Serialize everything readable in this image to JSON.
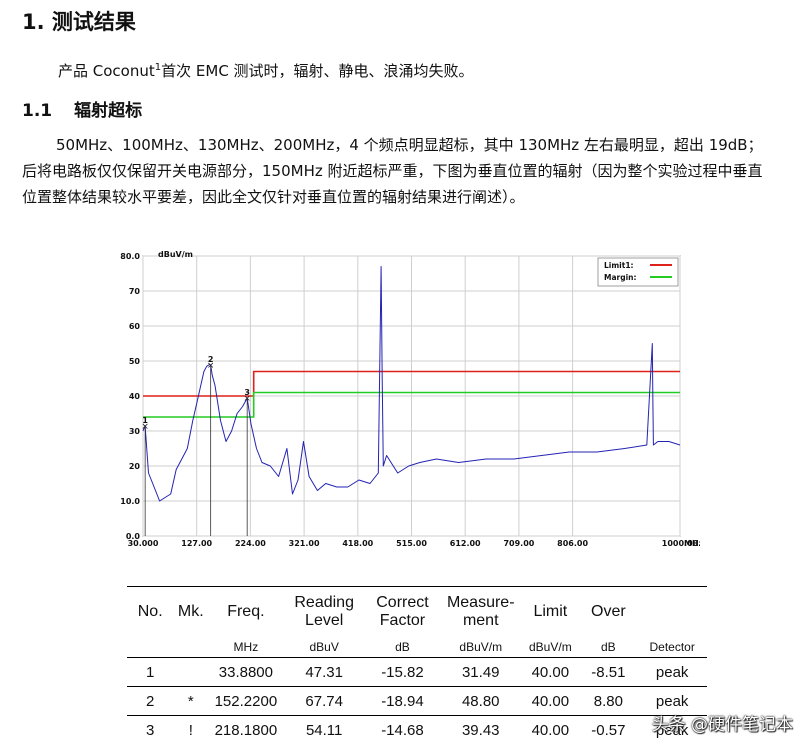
{
  "doc": {
    "h1": "1. 测试结果",
    "intro": {
      "prefix": "产品 Coconut",
      "sup": "1",
      "suffix": "首次 EMC 测试时，辐射、静电、浪涌均失败。"
    },
    "h2_num": "1.1",
    "h2_title": "辐射超标",
    "body": "50MHz、100MHz、130MHz、200MHz，4 个频点明显超标，其中 130MHz 左右最明显，超出 19dB；后将电路板仅仅保留开关电源部分，150MHz 附近超标严重，下图为垂直位置的辐射（因为整个实验过程中垂直位置整体结果较水平要差，因此全文仅针对垂直位置的辐射结果进行阐述）。"
  },
  "chart_data": {
    "type": "line",
    "ylabel": "dBuV/m",
    "xlabel": "MHz",
    "xlim": [
      30,
      1000
    ],
    "ylim": [
      0,
      80
    ],
    "x_ticks": [
      "30.000",
      "127.00",
      "224.00",
      "321.00",
      "418.00",
      "515.00",
      "612.00",
      "709.00",
      "806.00",
      "1000.00"
    ],
    "x_tick_values": [
      30,
      127,
      224,
      321,
      418,
      515,
      612,
      709,
      806,
      1000
    ],
    "y_ticks": [
      "80.0",
      "70",
      "60",
      "50",
      "40",
      "30",
      "20",
      "10.0",
      "0.0"
    ],
    "y_tick_values": [
      80,
      70,
      60,
      50,
      40,
      30,
      20,
      10,
      0
    ],
    "grid": true,
    "legend_position": "top-right",
    "series": [
      {
        "name": "Limit1:",
        "color": "#e0201a",
        "x": [
          30,
          230,
          230,
          1000
        ],
        "y": [
          40,
          40,
          47,
          47
        ]
      },
      {
        "name": "Margin:",
        "color": "#22cc22",
        "x": [
          30,
          230,
          230,
          1000
        ],
        "y": [
          34,
          34,
          41,
          41
        ]
      },
      {
        "name": "",
        "color": "#2323b4",
        "x": [
          30,
          33.88,
          40,
          50,
          60,
          70,
          80,
          90,
          100,
          110,
          120,
          130,
          140,
          145,
          150,
          152.22,
          155,
          160,
          170,
          180,
          190,
          200,
          210,
          218.18,
          225,
          235,
          245,
          260,
          275,
          290,
          300,
          310,
          320,
          330,
          345,
          360,
          380,
          400,
          420,
          440,
          455,
          460,
          462,
          464,
          470,
          490,
          510,
          530,
          560,
          600,
          650,
          700,
          750,
          800,
          850,
          900,
          940,
          950,
          951,
          952,
          960,
          980,
          1000
        ],
        "y": [
          30,
          31.5,
          18,
          14,
          10,
          11,
          12,
          19,
          22,
          25,
          33,
          40,
          47,
          48.5,
          49,
          48.8,
          46,
          43,
          33,
          27,
          30,
          35,
          37,
          39.4,
          32,
          25,
          21,
          20,
          17,
          25,
          12,
          16,
          27,
          17,
          13,
          15,
          14,
          14,
          16,
          15,
          18,
          77,
          45,
          20,
          23,
          18,
          20,
          21,
          22,
          21,
          22,
          22,
          23,
          24,
          24,
          25,
          26,
          55,
          38,
          26,
          27,
          27,
          26
        ]
      }
    ],
    "markers": [
      {
        "label": "1",
        "x": 33.88,
        "y": 31.49
      },
      {
        "label": "2",
        "x": 152.22,
        "y": 48.8
      },
      {
        "label": "3",
        "x": 218.18,
        "y": 39.43
      }
    ]
  },
  "table": {
    "headers": [
      "No.",
      "Mk.",
      "Freq.",
      "Reading Level",
      "Correct Factor",
      "Measure-ment",
      "Limit",
      "Over",
      ""
    ],
    "units": [
      "",
      "",
      "MHz",
      "dBuV",
      "dB",
      "dBuV/m",
      "dBuV/m",
      "dB",
      "Detector"
    ],
    "rows": [
      [
        "1",
        "",
        "33.8800",
        "47.31",
        "-15.82",
        "31.49",
        "40.00",
        "-8.51",
        "peak"
      ],
      [
        "2",
        "*",
        "152.2200",
        "67.74",
        "-18.94",
        "48.80",
        "40.00",
        "8.80",
        "peak"
      ],
      [
        "3",
        "!",
        "218.1800",
        "54.11",
        "-14.68",
        "39.43",
        "40.00",
        "-0.57",
        "peak"
      ]
    ]
  },
  "watermark": "头条 @硬件笔记本"
}
